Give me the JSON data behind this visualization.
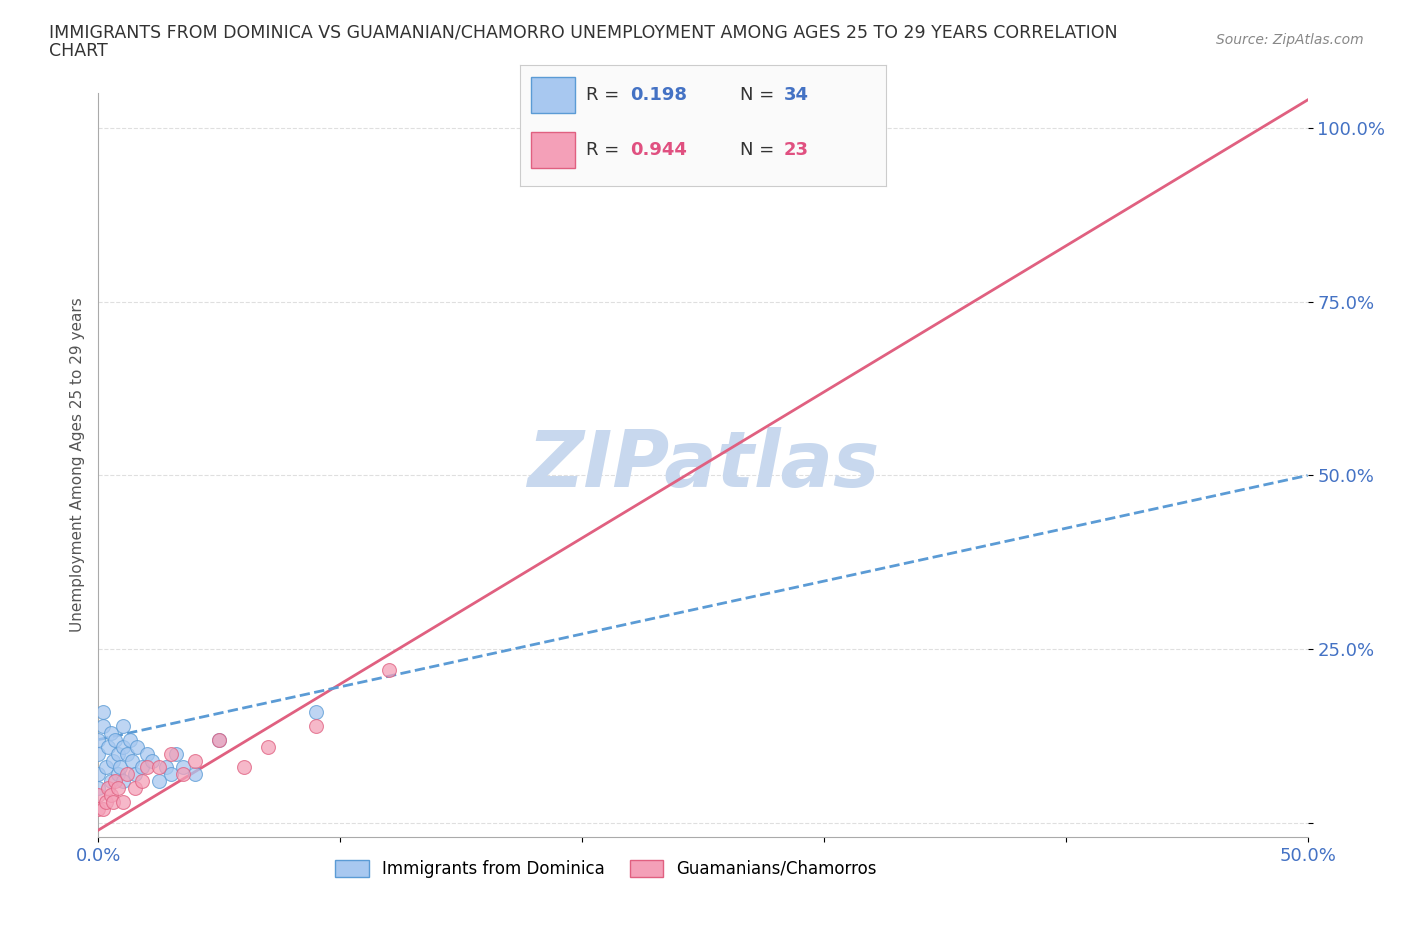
{
  "title_line1": "IMMIGRANTS FROM DOMINICA VS GUAMANIAN/CHAMORRO UNEMPLOYMENT AMONG AGES 25 TO 29 YEARS CORRELATION",
  "title_line2": "CHART",
  "source_text": "Source: ZipAtlas.com",
  "ylabel": "Unemployment Among Ages 25 to 29 years",
  "xlim": [
    0.0,
    0.5
  ],
  "ylim": [
    -0.02,
    1.05
  ],
  "xticks": [
    0.0,
    0.1,
    0.2,
    0.3,
    0.4,
    0.5
  ],
  "xticklabels": [
    "0.0%",
    "",
    "",
    "",
    "",
    "50.0%"
  ],
  "ytick_positions": [
    0.0,
    0.25,
    0.5,
    0.75,
    1.0
  ],
  "yticklabels": [
    "",
    "25.0%",
    "50.0%",
    "75.0%",
    "100.0%"
  ],
  "R_dominica": 0.198,
  "N_dominica": 34,
  "R_guamanian": 0.944,
  "N_guamanian": 23,
  "color_dominica": "#A8C8F0",
  "color_guamanian": "#F4A0B8",
  "color_dominica_line": "#5B9BD5",
  "color_guamanian_line": "#E06080",
  "color_text_blue": "#4472C4",
  "color_text_pink": "#E05080",
  "watermark_color": "#C8D8EE",
  "background_color": "#FFFFFF",
  "dominica_x": [
    0.0,
    0.0,
    0.0,
    0.0,
    0.002,
    0.002,
    0.003,
    0.004,
    0.005,
    0.005,
    0.006,
    0.007,
    0.008,
    0.008,
    0.009,
    0.01,
    0.01,
    0.01,
    0.012,
    0.013,
    0.014,
    0.015,
    0.016,
    0.018,
    0.02,
    0.022,
    0.025,
    0.028,
    0.03,
    0.032,
    0.035,
    0.04,
    0.05,
    0.09
  ],
  "dominica_y": [
    0.05,
    0.07,
    0.1,
    0.12,
    0.14,
    0.16,
    0.08,
    0.11,
    0.13,
    0.06,
    0.09,
    0.12,
    0.07,
    0.1,
    0.08,
    0.14,
    0.11,
    0.06,
    0.1,
    0.12,
    0.09,
    0.07,
    0.11,
    0.08,
    0.1,
    0.09,
    0.06,
    0.08,
    0.07,
    0.1,
    0.08,
    0.07,
    0.12,
    0.16
  ],
  "guamanian_x": [
    0.0,
    0.0,
    0.002,
    0.003,
    0.004,
    0.005,
    0.006,
    0.007,
    0.008,
    0.01,
    0.012,
    0.015,
    0.018,
    0.02,
    0.025,
    0.03,
    0.035,
    0.04,
    0.05,
    0.06,
    0.07,
    0.09,
    0.12
  ],
  "guamanian_y": [
    0.02,
    0.04,
    0.02,
    0.03,
    0.05,
    0.04,
    0.03,
    0.06,
    0.05,
    0.03,
    0.07,
    0.05,
    0.06,
    0.08,
    0.08,
    0.1,
    0.07,
    0.09,
    0.12,
    0.08,
    0.11,
    0.14,
    0.22
  ],
  "grid_color": "#D8D8D8"
}
